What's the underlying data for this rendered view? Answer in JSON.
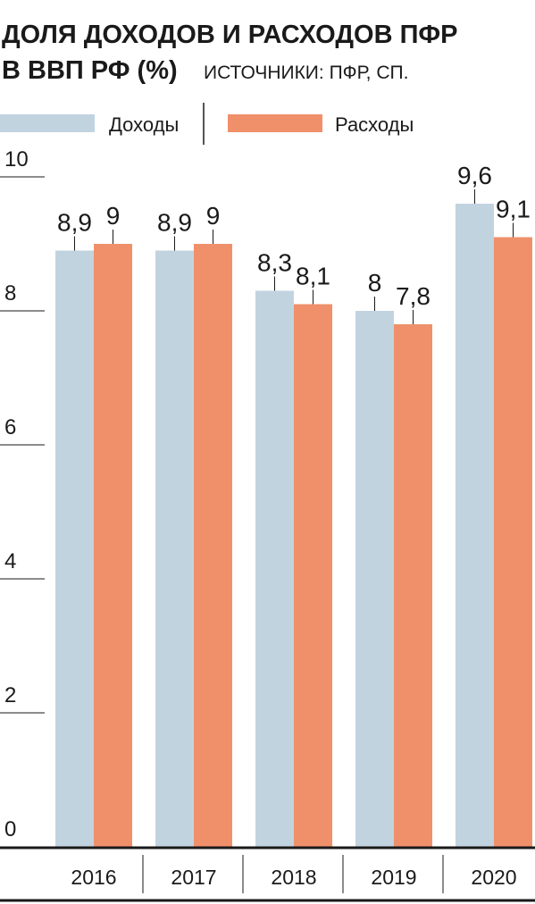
{
  "chart_data": {
    "type": "bar",
    "title": [
      "ДОЛЯ ДОХОДОВ И РАСХОДОВ ПФР",
      "В ВВП РФ (%)"
    ],
    "source": "ИСТОЧНИКИ: ПФР, СП.",
    "categories": [
      "2016",
      "2017",
      "2018",
      "2019",
      "2020"
    ],
    "series": [
      {
        "name": "Доходы",
        "color": "#c2d3e0",
        "values": [
          8.9,
          8.9,
          8.3,
          8,
          9.6
        ],
        "value_labels": [
          "8,9",
          "8,9",
          "8,3",
          "8",
          "9,6"
        ]
      },
      {
        "name": "Расходы",
        "color": "#f0906a",
        "values": [
          9,
          9,
          8.1,
          7.8,
          9.1
        ],
        "value_labels": [
          "9",
          "9",
          "8,1",
          "7,8",
          "9,1"
        ]
      }
    ],
    "ylim": [
      0,
      10
    ],
    "yticks": [
      0,
      2,
      4,
      6,
      8,
      10
    ]
  }
}
